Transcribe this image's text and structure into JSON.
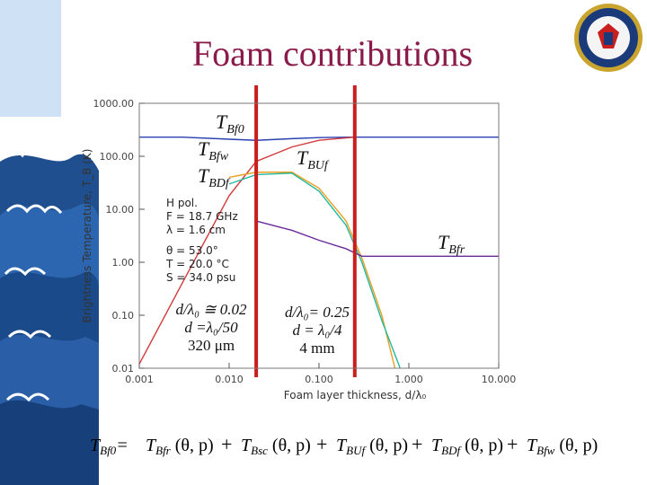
{
  "slide": {
    "title": "Foam contributions",
    "accent_color": "#8a1a4a"
  },
  "decor": {
    "left_image": "wave-illustration",
    "seal": "agency-seal-icon"
  },
  "annotations": {
    "left_line1": "d/λ₀ ≅ 0.02",
    "left_line2": "d =λ₀/50",
    "left_line3": "320 μm",
    "right_line1": "d/λ₀= 0.25",
    "right_line2": "d = λ₀/4",
    "right_line3": "4 mm"
  },
  "chart_data": {
    "type": "line",
    "xlabel": "Foam layer thickness, d/λ₀",
    "ylabel": "Brightness Temperature, T_B (K)",
    "x_scale": "log",
    "y_scale": "log",
    "xlim": [
      0.001,
      10
    ],
    "ylim": [
      0.01,
      1000
    ],
    "x_ticks": [
      "0.001",
      "0.010",
      "0.100",
      "1.000",
      "10.000"
    ],
    "y_ticks": [
      "1000.00",
      "100.00",
      "10.00",
      "1.00",
      "0.10",
      "0.01"
    ],
    "params": [
      "H pol.",
      "F = 18.7 GHz",
      "λ = 1.6 cm",
      "θ = 53.0°",
      "T = 20.0 °C",
      "S = 34.0 psu"
    ],
    "vertical_markers": [
      0.02,
      0.25
    ],
    "marker_color": "#c81e1e",
    "series": [
      {
        "name": "T_Bf0",
        "color": "#2a3fb0",
        "x": [
          0.001,
          0.003,
          0.01,
          0.02,
          0.05,
          0.1,
          0.25,
          0.5,
          1,
          10
        ],
        "y": [
          230,
          230,
          210,
          200,
          215,
          225,
          230,
          230,
          230,
          230
        ]
      },
      {
        "name": "T_BUf",
        "color": "#d23a3a",
        "x": [
          0.001,
          0.003,
          0.01,
          0.02,
          0.05,
          0.1,
          0.25
        ],
        "y": [
          0.012,
          0.4,
          18,
          80,
          150,
          200,
          230
        ]
      },
      {
        "name": "T_BDf",
        "color": "#e8a020",
        "x": [
          0.01,
          0.02,
          0.05,
          0.1,
          0.2,
          0.3,
          0.5,
          0.7
        ],
        "y": [
          40,
          50,
          50,
          25,
          6,
          1.2,
          0.1,
          0.01
        ]
      },
      {
        "name": "T_Bfw",
        "color": "#22b8a0",
        "x": [
          0.01,
          0.02,
          0.05,
          0.1,
          0.2,
          0.3,
          0.5,
          0.8
        ],
        "y": [
          30,
          45,
          48,
          22,
          5,
          1,
          0.08,
          0.01
        ]
      },
      {
        "name": "T_Bfr",
        "color": "#6a2a9a",
        "x": [
          0.02,
          0.05,
          0.1,
          0.2,
          0.3,
          1,
          10
        ],
        "y": [
          6,
          4,
          2.6,
          1.8,
          1.3,
          1.3,
          1.3
        ]
      }
    ]
  },
  "formula": {
    "lhs": "T",
    "lhs_sub": "Bf0",
    "eq": "=",
    "terms": [
      {
        "sym": "T",
        "sub": "Bfr",
        "args": "(θ, p)"
      },
      {
        "sym": "T",
        "sub": "Bsc",
        "args": "(θ, p)"
      },
      {
        "sym": "T",
        "sub": "BUf",
        "args": "(θ, p)"
      },
      {
        "sym": "T",
        "sub": "BDf",
        "args": "(θ, p)"
      },
      {
        "sym": "T",
        "sub": "Bfw",
        "args": "(θ, p)"
      }
    ],
    "plus": "+"
  }
}
